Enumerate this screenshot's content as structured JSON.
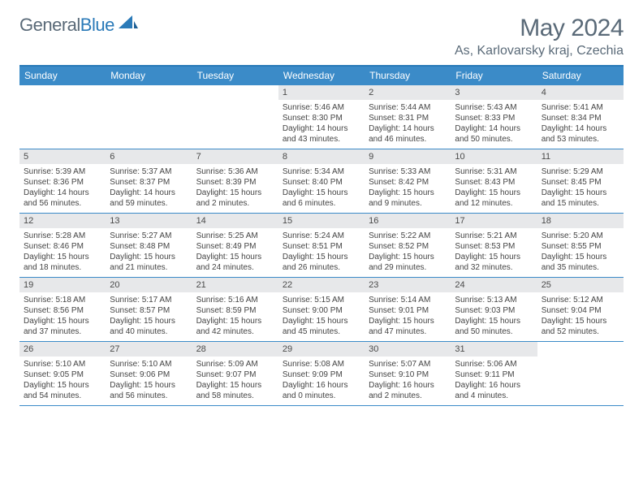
{
  "brand": {
    "part1": "General",
    "part2": "Blue"
  },
  "title": "May 2024",
  "location": "As, Karlovarsky kraj, Czechia",
  "colors": {
    "header_band": "#3b8bc8",
    "header_border_top": "#2a7ab8",
    "daynum_bg": "#e7e8ea",
    "text_muted": "#5a6a78"
  },
  "weekdays": [
    "Sunday",
    "Monday",
    "Tuesday",
    "Wednesday",
    "Thursday",
    "Friday",
    "Saturday"
  ],
  "weeks": [
    [
      {
        "empty": true
      },
      {
        "empty": true
      },
      {
        "empty": true
      },
      {
        "n": "1",
        "sunrise": "5:46 AM",
        "sunset": "8:30 PM",
        "daylight": "14 hours and 43 minutes."
      },
      {
        "n": "2",
        "sunrise": "5:44 AM",
        "sunset": "8:31 PM",
        "daylight": "14 hours and 46 minutes."
      },
      {
        "n": "3",
        "sunrise": "5:43 AM",
        "sunset": "8:33 PM",
        "daylight": "14 hours and 50 minutes."
      },
      {
        "n": "4",
        "sunrise": "5:41 AM",
        "sunset": "8:34 PM",
        "daylight": "14 hours and 53 minutes."
      }
    ],
    [
      {
        "n": "5",
        "sunrise": "5:39 AM",
        "sunset": "8:36 PM",
        "daylight": "14 hours and 56 minutes."
      },
      {
        "n": "6",
        "sunrise": "5:37 AM",
        "sunset": "8:37 PM",
        "daylight": "14 hours and 59 minutes."
      },
      {
        "n": "7",
        "sunrise": "5:36 AM",
        "sunset": "8:39 PM",
        "daylight": "15 hours and 2 minutes."
      },
      {
        "n": "8",
        "sunrise": "5:34 AM",
        "sunset": "8:40 PM",
        "daylight": "15 hours and 6 minutes."
      },
      {
        "n": "9",
        "sunrise": "5:33 AM",
        "sunset": "8:42 PM",
        "daylight": "15 hours and 9 minutes."
      },
      {
        "n": "10",
        "sunrise": "5:31 AM",
        "sunset": "8:43 PM",
        "daylight": "15 hours and 12 minutes."
      },
      {
        "n": "11",
        "sunrise": "5:29 AM",
        "sunset": "8:45 PM",
        "daylight": "15 hours and 15 minutes."
      }
    ],
    [
      {
        "n": "12",
        "sunrise": "5:28 AM",
        "sunset": "8:46 PM",
        "daylight": "15 hours and 18 minutes."
      },
      {
        "n": "13",
        "sunrise": "5:27 AM",
        "sunset": "8:48 PM",
        "daylight": "15 hours and 21 minutes."
      },
      {
        "n": "14",
        "sunrise": "5:25 AM",
        "sunset": "8:49 PM",
        "daylight": "15 hours and 24 minutes."
      },
      {
        "n": "15",
        "sunrise": "5:24 AM",
        "sunset": "8:51 PM",
        "daylight": "15 hours and 26 minutes."
      },
      {
        "n": "16",
        "sunrise": "5:22 AM",
        "sunset": "8:52 PM",
        "daylight": "15 hours and 29 minutes."
      },
      {
        "n": "17",
        "sunrise": "5:21 AM",
        "sunset": "8:53 PM",
        "daylight": "15 hours and 32 minutes."
      },
      {
        "n": "18",
        "sunrise": "5:20 AM",
        "sunset": "8:55 PM",
        "daylight": "15 hours and 35 minutes."
      }
    ],
    [
      {
        "n": "19",
        "sunrise": "5:18 AM",
        "sunset": "8:56 PM",
        "daylight": "15 hours and 37 minutes."
      },
      {
        "n": "20",
        "sunrise": "5:17 AM",
        "sunset": "8:57 PM",
        "daylight": "15 hours and 40 minutes."
      },
      {
        "n": "21",
        "sunrise": "5:16 AM",
        "sunset": "8:59 PM",
        "daylight": "15 hours and 42 minutes."
      },
      {
        "n": "22",
        "sunrise": "5:15 AM",
        "sunset": "9:00 PM",
        "daylight": "15 hours and 45 minutes."
      },
      {
        "n": "23",
        "sunrise": "5:14 AM",
        "sunset": "9:01 PM",
        "daylight": "15 hours and 47 minutes."
      },
      {
        "n": "24",
        "sunrise": "5:13 AM",
        "sunset": "9:03 PM",
        "daylight": "15 hours and 50 minutes."
      },
      {
        "n": "25",
        "sunrise": "5:12 AM",
        "sunset": "9:04 PM",
        "daylight": "15 hours and 52 minutes."
      }
    ],
    [
      {
        "n": "26",
        "sunrise": "5:10 AM",
        "sunset": "9:05 PM",
        "daylight": "15 hours and 54 minutes."
      },
      {
        "n": "27",
        "sunrise": "5:10 AM",
        "sunset": "9:06 PM",
        "daylight": "15 hours and 56 minutes."
      },
      {
        "n": "28",
        "sunrise": "5:09 AM",
        "sunset": "9:07 PM",
        "daylight": "15 hours and 58 minutes."
      },
      {
        "n": "29",
        "sunrise": "5:08 AM",
        "sunset": "9:09 PM",
        "daylight": "16 hours and 0 minutes."
      },
      {
        "n": "30",
        "sunrise": "5:07 AM",
        "sunset": "9:10 PM",
        "daylight": "16 hours and 2 minutes."
      },
      {
        "n": "31",
        "sunrise": "5:06 AM",
        "sunset": "9:11 PM",
        "daylight": "16 hours and 4 minutes."
      },
      {
        "empty": true
      }
    ]
  ],
  "labels": {
    "sunrise_prefix": "Sunrise: ",
    "sunset_prefix": "Sunset: ",
    "daylight_prefix": "Daylight: "
  }
}
